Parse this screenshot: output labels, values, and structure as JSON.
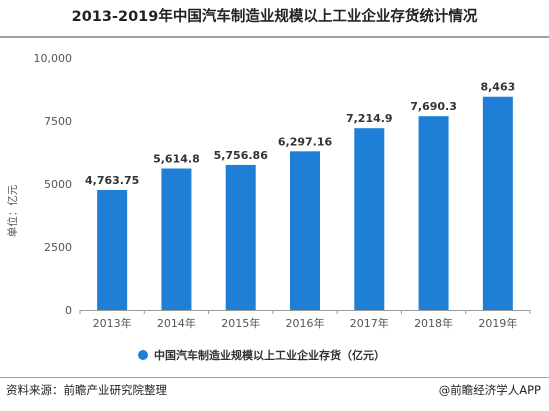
{
  "page": {
    "title": "2013-2019年中国汽车制造业规模以上工业企业存货统计情况",
    "source": "资料来源：前瞻产业研究院整理",
    "credit": "@前瞻经济学人APP"
  },
  "chart_data": {
    "type": "bar",
    "title": "2013-2019年中国汽车制造业规模以上工业企业存货统计情况",
    "xlabel": "",
    "ylabel": "单位：亿元",
    "categories": [
      "2013年",
      "2014年",
      "2015年",
      "2016年",
      "2017年",
      "2018年",
      "2019年"
    ],
    "values": [
      4763.75,
      5614.8,
      5756.86,
      6297.16,
      7214.9,
      7690.3,
      8463
    ],
    "data_labels": [
      "4,763.75",
      "5,614.8",
      "5,756.86",
      "6,297.16",
      "7,214.9",
      "7,690.3",
      "8,463"
    ],
    "ylim": [
      0,
      10000
    ],
    "yticks": [
      0,
      2500,
      5000,
      7500,
      10000
    ],
    "ytick_labels": [
      "0",
      "2500",
      "5000",
      "7500",
      "10,000"
    ],
    "series": [
      {
        "name": "中国汽车制造业规模以上工业企业存货（亿元）",
        "color": "#1f7fd6"
      }
    ],
    "legend_position": "bottom",
    "grid": false
  }
}
